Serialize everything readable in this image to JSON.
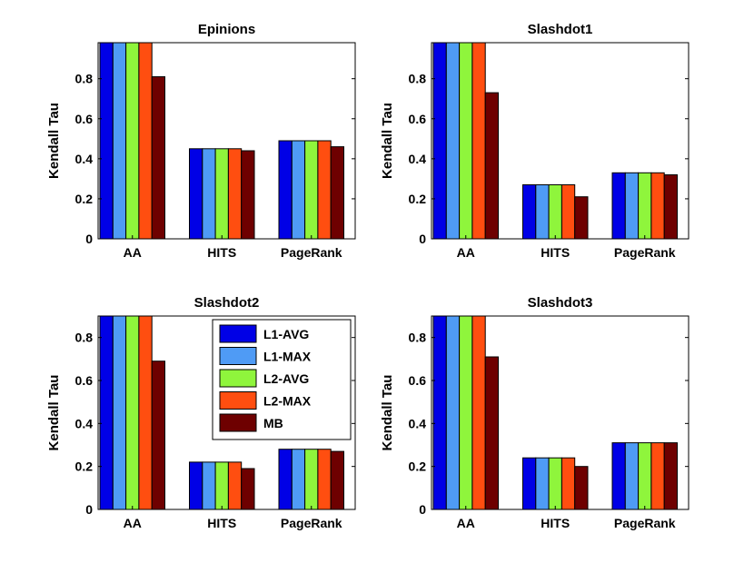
{
  "series_colors": {
    "L1-AVG": "#0000e6",
    "L1-MAX": "#4f9bf5",
    "L2-AVG": "#8ff53c",
    "L2-MAX": "#ff4e10",
    "MB": "#6e0000"
  },
  "chart_data": [
    {
      "type": "bar",
      "title": "Epinions",
      "ylabel": "Kendall Tau",
      "xlabel": "",
      "categories": [
        "AA",
        "HITS",
        "PageRank"
      ],
      "ylim": [
        0,
        0.98
      ],
      "yticks": [
        "0",
        "0.2",
        "0.4",
        "0.6",
        "0.8"
      ],
      "series": [
        {
          "name": "L1-AVG",
          "values": [
            1.0,
            0.45,
            0.49
          ]
        },
        {
          "name": "L1-MAX",
          "values": [
            1.0,
            0.45,
            0.49
          ]
        },
        {
          "name": "L2-AVG",
          "values": [
            1.0,
            0.45,
            0.49
          ]
        },
        {
          "name": "L2-MAX",
          "values": [
            1.0,
            0.45,
            0.49
          ]
        },
        {
          "name": "MB",
          "values": [
            0.81,
            0.44,
            0.46
          ]
        }
      ]
    },
    {
      "type": "bar",
      "title": "Slashdot1",
      "ylabel": "Kendall Tau",
      "xlabel": "",
      "categories": [
        "AA",
        "HITS",
        "PageRank"
      ],
      "ylim": [
        0,
        0.98
      ],
      "yticks": [
        "0",
        "0.2",
        "0.4",
        "0.6",
        "0.8"
      ],
      "series": [
        {
          "name": "L1-AVG",
          "values": [
            1.0,
            0.27,
            0.33
          ]
        },
        {
          "name": "L1-MAX",
          "values": [
            1.0,
            0.27,
            0.33
          ]
        },
        {
          "name": "L2-AVG",
          "values": [
            1.0,
            0.27,
            0.33
          ]
        },
        {
          "name": "L2-MAX",
          "values": [
            1.0,
            0.27,
            0.33
          ]
        },
        {
          "name": "MB",
          "values": [
            0.73,
            0.21,
            0.32
          ]
        }
      ]
    },
    {
      "type": "bar",
      "title": "Slashdot2",
      "ylabel": "Kendall Tau",
      "xlabel": "",
      "categories": [
        "AA",
        "HITS",
        "PageRank"
      ],
      "ylim": [
        0,
        0.9
      ],
      "yticks": [
        "0",
        "0.2",
        "0.4",
        "0.6",
        "0.8"
      ],
      "legend": {
        "position": "upper-right",
        "entries": [
          "L1-AVG",
          "L1-MAX",
          "L2-AVG",
          "L2-MAX",
          "MB"
        ]
      },
      "series": [
        {
          "name": "L1-AVG",
          "values": [
            1.0,
            0.22,
            0.28
          ]
        },
        {
          "name": "L1-MAX",
          "values": [
            1.0,
            0.22,
            0.28
          ]
        },
        {
          "name": "L2-AVG",
          "values": [
            1.0,
            0.22,
            0.28
          ]
        },
        {
          "name": "L2-MAX",
          "values": [
            1.0,
            0.22,
            0.28
          ]
        },
        {
          "name": "MB",
          "values": [
            0.69,
            0.19,
            0.27
          ]
        }
      ]
    },
    {
      "type": "bar",
      "title": "Slashdot3",
      "ylabel": "Kendall Tau",
      "xlabel": "",
      "categories": [
        "AA",
        "HITS",
        "PageRank"
      ],
      "ylim": [
        0,
        0.9
      ],
      "yticks": [
        "0",
        "0.2",
        "0.4",
        "0.6",
        "0.8"
      ],
      "series": [
        {
          "name": "L1-AVG",
          "values": [
            1.0,
            0.24,
            0.31
          ]
        },
        {
          "name": "L1-MAX",
          "values": [
            1.0,
            0.24,
            0.31
          ]
        },
        {
          "name": "L2-AVG",
          "values": [
            1.0,
            0.24,
            0.31
          ]
        },
        {
          "name": "L2-MAX",
          "values": [
            1.0,
            0.24,
            0.31
          ]
        },
        {
          "name": "MB",
          "values": [
            0.71,
            0.2,
            0.31
          ]
        }
      ]
    }
  ]
}
